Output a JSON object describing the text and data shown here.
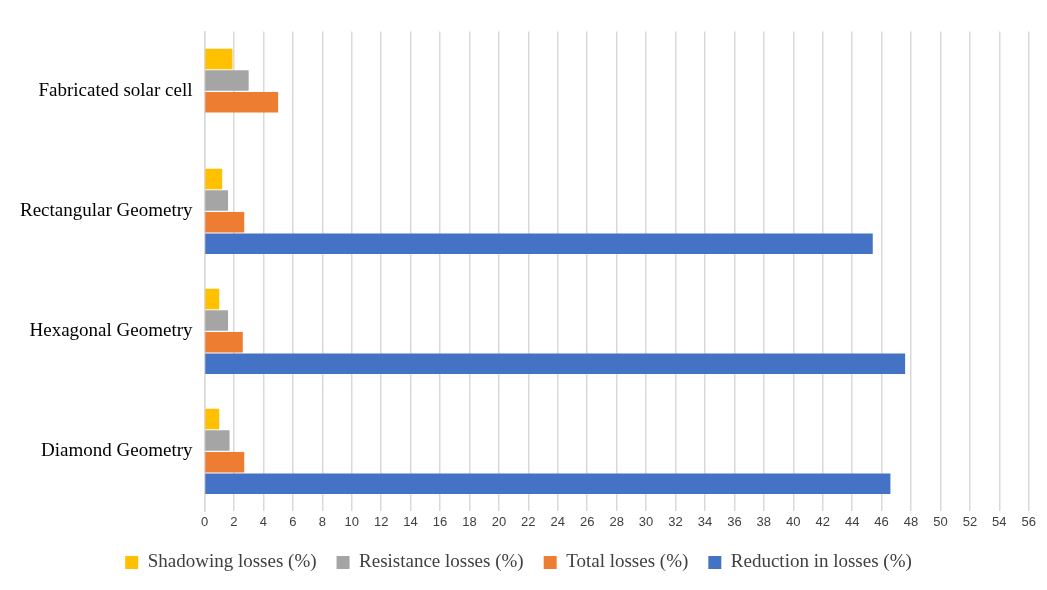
{
  "chart_data": {
    "type": "bar",
    "orientation": "horizontal",
    "categories": [
      "Fabricated solar cell",
      "Rectangular Geometry",
      "Hexagonal Geometry",
      "Diamond Geometry"
    ],
    "series": [
      {
        "name": "Shadowing losses (%)",
        "color": "#ffc000",
        "values": [
          1.9,
          1.2,
          1.0,
          1.0
        ]
      },
      {
        "name": "Resistance losses (%)",
        "color": "#a5a5a5",
        "values": [
          3.0,
          1.6,
          1.6,
          1.7
        ]
      },
      {
        "name": "Total losses (%)",
        "color": "#ed7d31",
        "values": [
          5.0,
          2.7,
          2.6,
          2.7
        ]
      },
      {
        "name": "Reduction in losses (%)",
        "color": "#4472c4",
        "values": [
          null,
          45.4,
          47.6,
          46.6
        ]
      }
    ],
    "xlim": [
      0,
      56
    ],
    "xticks": [
      0,
      2,
      4,
      6,
      8,
      10,
      12,
      14,
      16,
      18,
      20,
      22,
      24,
      26,
      28,
      30,
      32,
      34,
      36,
      38,
      40,
      42,
      44,
      46,
      48,
      50,
      52,
      54,
      56
    ],
    "grid": "x",
    "legend": "bottom"
  }
}
